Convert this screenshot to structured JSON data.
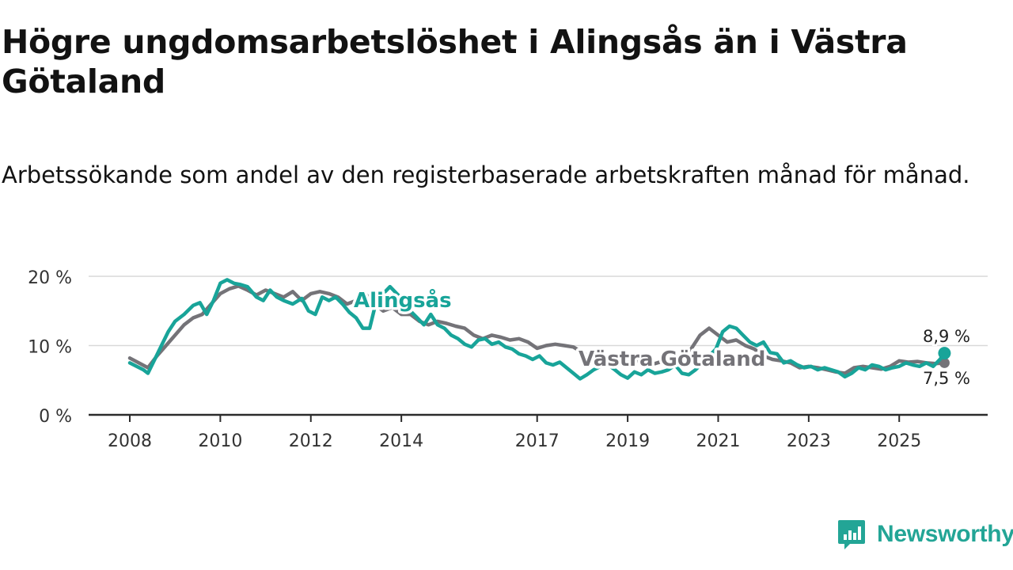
{
  "title": "Högre ungdomsarbetslöshet i Alingsås än i Västra Götaland",
  "subtitle": "Arbetssökande som andel av den registerbaserade arbetskraften månad för månad.",
  "brand": {
    "name": "Newsworthy"
  },
  "colors": {
    "alingsas": "#18a499",
    "vastra_gotaland": "#747378",
    "grid": "#d9d9d9",
    "axis": "#2b2b2b",
    "text": "#121212"
  },
  "chart_data": {
    "type": "line",
    "title": "Högre ungdomsarbetslöshet i Alingsås än i Västra Götaland",
    "subtitle": "Arbetssökande som andel av den registerbaserade arbetskraften månad för månad.",
    "xlabel": "",
    "ylabel": "",
    "xlim": [
      2008,
      2026.08
    ],
    "ylim": [
      0,
      20
    ],
    "yticks": [
      0,
      10,
      20
    ],
    "ytick_labels": [
      "0 %",
      "10 %",
      "20 %"
    ],
    "xticks": [
      2008,
      2010,
      2012,
      2014,
      2017,
      2019,
      2021,
      2023,
      2025
    ],
    "xtick_labels": [
      "2008",
      "2010",
      "2012",
      "2014",
      "2017",
      "2019",
      "2021",
      "2023",
      "2025"
    ],
    "grid": true,
    "series": [
      {
        "name": "Västra Götaland",
        "label": "Västra Götaland",
        "points": [
          [
            2008.0,
            8.2
          ],
          [
            2008.2,
            7.5
          ],
          [
            2008.4,
            6.8
          ],
          [
            2008.6,
            8.5
          ],
          [
            2008.8,
            10.0
          ],
          [
            2009.0,
            11.5
          ],
          [
            2009.2,
            13.0
          ],
          [
            2009.4,
            14.0
          ],
          [
            2009.6,
            14.5
          ],
          [
            2009.8,
            16.0
          ],
          [
            2010.0,
            17.5
          ],
          [
            2010.2,
            18.2
          ],
          [
            2010.4,
            18.6
          ],
          [
            2010.6,
            18.0
          ],
          [
            2010.8,
            17.3
          ],
          [
            2011.0,
            18.0
          ],
          [
            2011.2,
            17.5
          ],
          [
            2011.4,
            17.0
          ],
          [
            2011.6,
            17.8
          ],
          [
            2011.8,
            16.5
          ],
          [
            2012.0,
            17.5
          ],
          [
            2012.2,
            17.8
          ],
          [
            2012.4,
            17.5
          ],
          [
            2012.6,
            17.0
          ],
          [
            2012.8,
            16.0
          ],
          [
            2013.0,
            16.5
          ],
          [
            2013.2,
            17.5
          ],
          [
            2013.4,
            16.0
          ],
          [
            2013.6,
            15.0
          ],
          [
            2013.8,
            15.5
          ],
          [
            2014.0,
            14.5
          ],
          [
            2014.2,
            14.5
          ],
          [
            2014.4,
            13.5
          ],
          [
            2014.6,
            13.0
          ],
          [
            2014.8,
            13.5
          ],
          [
            2015.0,
            13.2
          ],
          [
            2015.2,
            12.8
          ],
          [
            2015.4,
            12.5
          ],
          [
            2015.6,
            11.5
          ],
          [
            2015.8,
            11.0
          ],
          [
            2016.0,
            11.5
          ],
          [
            2016.2,
            11.2
          ],
          [
            2016.4,
            10.8
          ],
          [
            2016.6,
            11.0
          ],
          [
            2016.8,
            10.5
          ],
          [
            2017.0,
            9.6
          ],
          [
            2017.2,
            10.0
          ],
          [
            2017.4,
            10.2
          ],
          [
            2017.6,
            10.0
          ],
          [
            2017.8,
            9.8
          ],
          [
            2018.0,
            9.0
          ],
          [
            2018.2,
            8.2
          ],
          [
            2018.4,
            8.5
          ],
          [
            2018.6,
            8.2
          ],
          [
            2018.8,
            8.0
          ],
          [
            2019.0,
            7.6
          ],
          [
            2019.2,
            7.8
          ],
          [
            2019.4,
            7.6
          ],
          [
            2019.6,
            7.4
          ],
          [
            2019.8,
            7.8
          ],
          [
            2020.0,
            8.0
          ],
          [
            2020.2,
            8.5
          ],
          [
            2020.4,
            9.5
          ],
          [
            2020.6,
            11.5
          ],
          [
            2020.8,
            12.5
          ],
          [
            2021.0,
            11.5
          ],
          [
            2021.2,
            10.5
          ],
          [
            2021.4,
            10.8
          ],
          [
            2021.6,
            10.0
          ],
          [
            2021.8,
            9.5
          ],
          [
            2022.0,
            8.5
          ],
          [
            2022.2,
            8.0
          ],
          [
            2022.4,
            7.8
          ],
          [
            2022.6,
            7.5
          ],
          [
            2022.8,
            6.8
          ],
          [
            2023.0,
            7.0
          ],
          [
            2023.2,
            6.8
          ],
          [
            2023.4,
            6.5
          ],
          [
            2023.6,
            6.2
          ],
          [
            2023.8,
            6.0
          ],
          [
            2024.0,
            6.8
          ],
          [
            2024.2,
            7.0
          ],
          [
            2024.4,
            6.8
          ],
          [
            2024.6,
            6.6
          ],
          [
            2024.8,
            7.0
          ],
          [
            2025.0,
            7.8
          ],
          [
            2025.2,
            7.6
          ],
          [
            2025.4,
            7.7
          ],
          [
            2025.6,
            7.5
          ],
          [
            2025.8,
            7.4
          ],
          [
            2026.0,
            7.5
          ]
        ],
        "end_label": "7,5 %"
      },
      {
        "name": "Alingsås",
        "label": "Alingsås",
        "points": [
          [
            2008.0,
            7.5
          ],
          [
            2008.15,
            7.0
          ],
          [
            2008.3,
            6.5
          ],
          [
            2008.4,
            6.0
          ],
          [
            2008.55,
            8.0
          ],
          [
            2008.7,
            10.0
          ],
          [
            2008.85,
            12.0
          ],
          [
            2009.0,
            13.5
          ],
          [
            2009.2,
            14.5
          ],
          [
            2009.4,
            15.8
          ],
          [
            2009.55,
            16.2
          ],
          [
            2009.7,
            14.5
          ],
          [
            2009.85,
            16.5
          ],
          [
            2010.0,
            19.0
          ],
          [
            2010.15,
            19.5
          ],
          [
            2010.3,
            19.0
          ],
          [
            2010.45,
            18.8
          ],
          [
            2010.6,
            18.5
          ],
          [
            2010.8,
            17.0
          ],
          [
            2010.95,
            16.5
          ],
          [
            2011.1,
            18.0
          ],
          [
            2011.25,
            17.0
          ],
          [
            2011.4,
            16.5
          ],
          [
            2011.6,
            16.0
          ],
          [
            2011.8,
            16.8
          ],
          [
            2011.95,
            15.0
          ],
          [
            2012.1,
            14.5
          ],
          [
            2012.25,
            17.0
          ],
          [
            2012.4,
            16.5
          ],
          [
            2012.55,
            17.0
          ],
          [
            2012.7,
            16.0
          ],
          [
            2012.85,
            14.8
          ],
          [
            2013.0,
            14.0
          ],
          [
            2013.15,
            12.5
          ],
          [
            2013.3,
            12.5
          ],
          [
            2013.45,
            16.5
          ],
          [
            2013.6,
            17.5
          ],
          [
            2013.75,
            18.5
          ],
          [
            2013.9,
            17.5
          ],
          [
            2014.05,
            16.5
          ],
          [
            2014.2,
            15.0
          ],
          [
            2014.35,
            14.0
          ],
          [
            2014.5,
            13.0
          ],
          [
            2014.65,
            14.5
          ],
          [
            2014.8,
            13.0
          ],
          [
            2014.95,
            12.5
          ],
          [
            2015.1,
            11.5
          ],
          [
            2015.25,
            11.0
          ],
          [
            2015.4,
            10.2
          ],
          [
            2015.55,
            9.8
          ],
          [
            2015.7,
            10.8
          ],
          [
            2015.85,
            11.0
          ],
          [
            2016.0,
            10.2
          ],
          [
            2016.15,
            10.5
          ],
          [
            2016.3,
            9.8
          ],
          [
            2016.45,
            9.5
          ],
          [
            2016.6,
            8.8
          ],
          [
            2016.75,
            8.5
          ],
          [
            2016.9,
            8.0
          ],
          [
            2017.05,
            8.5
          ],
          [
            2017.2,
            7.5
          ],
          [
            2017.35,
            7.2
          ],
          [
            2017.5,
            7.6
          ],
          [
            2017.65,
            6.8
          ],
          [
            2017.8,
            6.0
          ],
          [
            2017.95,
            5.2
          ],
          [
            2018.1,
            5.8
          ],
          [
            2018.25,
            6.5
          ],
          [
            2018.4,
            7.0
          ],
          [
            2018.55,
            7.3
          ],
          [
            2018.7,
            6.6
          ],
          [
            2018.85,
            5.8
          ],
          [
            2019.0,
            5.3
          ],
          [
            2019.15,
            6.2
          ],
          [
            2019.3,
            5.8
          ],
          [
            2019.45,
            6.5
          ],
          [
            2019.6,
            6.0
          ],
          [
            2019.75,
            6.2
          ],
          [
            2019.9,
            6.5
          ],
          [
            2020.05,
            7.2
          ],
          [
            2020.2,
            6.0
          ],
          [
            2020.35,
            5.8
          ],
          [
            2020.5,
            6.5
          ],
          [
            2020.65,
            7.5
          ],
          [
            2020.8,
            8.5
          ],
          [
            2020.95,
            9.5
          ],
          [
            2021.1,
            12.0
          ],
          [
            2021.25,
            12.8
          ],
          [
            2021.4,
            12.5
          ],
          [
            2021.55,
            11.5
          ],
          [
            2021.7,
            10.5
          ],
          [
            2021.85,
            10.0
          ],
          [
            2022.0,
            10.5
          ],
          [
            2022.15,
            9.0
          ],
          [
            2022.3,
            8.8
          ],
          [
            2022.45,
            7.5
          ],
          [
            2022.6,
            7.8
          ],
          [
            2022.75,
            7.2
          ],
          [
            2022.9,
            6.8
          ],
          [
            2023.05,
            7.0
          ],
          [
            2023.2,
            6.5
          ],
          [
            2023.35,
            6.8
          ],
          [
            2023.5,
            6.5
          ],
          [
            2023.65,
            6.2
          ],
          [
            2023.8,
            5.5
          ],
          [
            2023.95,
            6.0
          ],
          [
            2024.1,
            6.8
          ],
          [
            2024.25,
            6.5
          ],
          [
            2024.4,
            7.2
          ],
          [
            2024.55,
            7.0
          ],
          [
            2024.7,
            6.5
          ],
          [
            2024.85,
            6.8
          ],
          [
            2025.0,
            7.0
          ],
          [
            2025.15,
            7.5
          ],
          [
            2025.3,
            7.2
          ],
          [
            2025.45,
            7.0
          ],
          [
            2025.6,
            7.5
          ],
          [
            2025.75,
            7.0
          ],
          [
            2025.9,
            8.0
          ],
          [
            2026.0,
            8.9
          ]
        ],
        "end_label": "8,9 %"
      }
    ]
  }
}
